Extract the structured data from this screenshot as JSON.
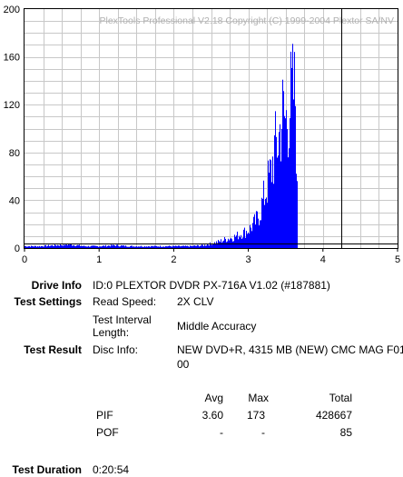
{
  "chart_data": {
    "type": "bar",
    "watermark": "PlexTools Professional V2.18 Copyright (C) 1999-2004 Plextor SA/NV",
    "xlim": [
      0,
      5
    ],
    "ylim": [
      0,
      200
    ],
    "x_ticks": [
      "0",
      "1",
      "2",
      "3",
      "4",
      "5"
    ],
    "y_ticks": [
      "0",
      "40",
      "80",
      "120",
      "160",
      "200"
    ],
    "series_color": "#0000ff",
    "threshold_y": 4,
    "marker_x": 4.25,
    "pif_profile": [
      [
        0.0,
        2
      ],
      [
        0.2,
        2
      ],
      [
        0.4,
        3
      ],
      [
        0.6,
        4
      ],
      [
        0.8,
        2
      ],
      [
        1.0,
        2
      ],
      [
        1.2,
        3
      ],
      [
        1.4,
        2
      ],
      [
        1.6,
        2
      ],
      [
        1.8,
        2
      ],
      [
        2.0,
        2
      ],
      [
        2.2,
        2
      ],
      [
        2.4,
        3
      ],
      [
        2.5,
        5
      ],
      [
        2.6,
        7
      ],
      [
        2.7,
        10
      ],
      [
        2.8,
        12
      ],
      [
        2.9,
        16
      ],
      [
        3.0,
        20
      ],
      [
        3.1,
        30
      ],
      [
        3.15,
        40
      ],
      [
        3.2,
        55
      ],
      [
        3.25,
        70
      ],
      [
        3.3,
        85
      ],
      [
        3.35,
        110
      ],
      [
        3.4,
        120
      ],
      [
        3.45,
        150
      ],
      [
        3.5,
        140
      ],
      [
        3.55,
        160
      ],
      [
        3.6,
        173
      ],
      [
        3.63,
        165
      ],
      [
        3.66,
        0
      ]
    ]
  },
  "info": {
    "drive_info_label": "Drive Info",
    "drive_info_value": "ID:0 PLEXTOR DVDR PX-716A V1.02 (#187881)",
    "test_settings_label": "Test Settings",
    "read_speed_label": "Read Speed:",
    "read_speed_value": "2X CLV",
    "interval_label_1": "Test Interval",
    "interval_label_2": "Length:",
    "interval_value": "Middle Accuracy",
    "test_result_label": "Test Result",
    "disc_info_label": "Disc Info:",
    "disc_info_value_1": "NEW DVD+R, 4315 MB (NEW) CMC MAG F01",
    "disc_info_value_2": "00",
    "col_avg": "Avg",
    "col_max": "Max",
    "col_total": "Total",
    "pif_label": "PIF",
    "pif_avg": "3.60",
    "pif_max": "173",
    "pif_total": "428667",
    "pof_label": "POF",
    "pof_avg": "-",
    "pof_max": "-",
    "pof_total": "85",
    "duration_label": "Test Duration",
    "duration_value": "0:20:54"
  }
}
